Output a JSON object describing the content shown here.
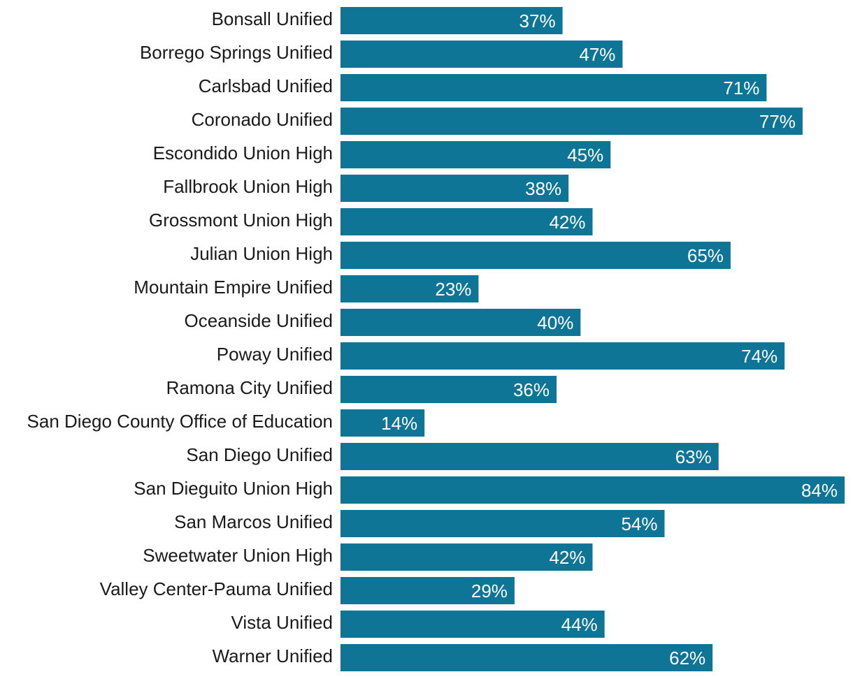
{
  "chart_data": {
    "type": "bar",
    "orientation": "horizontal",
    "title": "",
    "xlabel": "",
    "ylabel": "",
    "grid": false,
    "xlim": [
      0,
      84
    ],
    "value_suffix": "%",
    "bar_color": "#0f7597",
    "label_color": "#ffffff",
    "categories": [
      "Bonsall Unified",
      "Borrego Springs Unified",
      "Carlsbad Unified",
      "Coronado Unified",
      "Escondido Union High",
      "Fallbrook Union High",
      "Grossmont Union High",
      "Julian Union High",
      "Mountain Empire Unified",
      "Oceanside Unified",
      "Poway Unified",
      "Ramona City Unified",
      "San Diego County Office of Education",
      "San Diego Unified",
      "San Dieguito Union High",
      "San Marcos Unified",
      "Sweetwater Union High",
      "Valley Center-Pauma Unified",
      "Vista Unified",
      "Warner Unified"
    ],
    "values": [
      37,
      47,
      71,
      77,
      45,
      38,
      42,
      65,
      23,
      40,
      74,
      36,
      14,
      63,
      84,
      54,
      42,
      29,
      44,
      62
    ],
    "value_labels": [
      "37%",
      "47%",
      "71%",
      "77%",
      "45%",
      "38%",
      "42%",
      "65%",
      "23%",
      "40%",
      "74%",
      "36%",
      "14%",
      "63%",
      "84%",
      "54%",
      "42%",
      "29%",
      "44%",
      "62%"
    ]
  }
}
